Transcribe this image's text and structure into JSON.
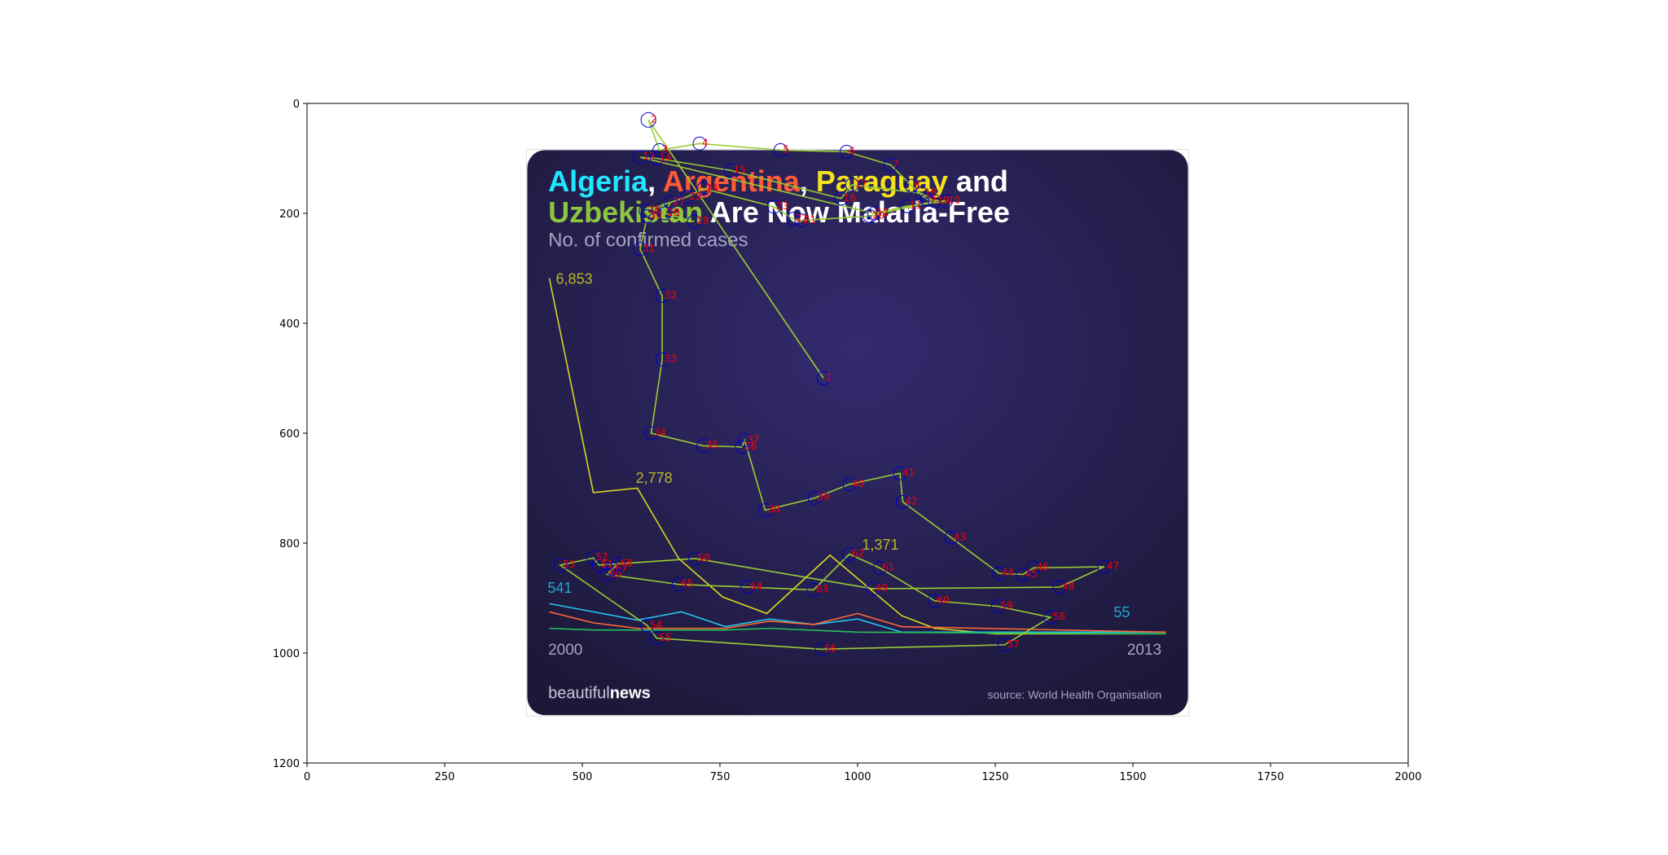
{
  "chart_data": {
    "type": "line",
    "xlim": [
      0,
      2000
    ],
    "ylim": [
      1200,
      0
    ],
    "x_ticks": [
      0,
      250,
      500,
      750,
      1000,
      1250,
      1500,
      1750,
      2000
    ],
    "y_ticks": [
      0,
      200,
      400,
      600,
      800,
      1000,
      1200
    ],
    "grid": false,
    "infographic": {
      "title_line1": [
        {
          "text": "Algeria",
          "color": "#22e5ff"
        },
        {
          "text": ", ",
          "color": "#ffffff"
        },
        {
          "text": "Argentina",
          "color": "#ff5a36"
        },
        {
          "text": ", ",
          "color": "#ffffff"
        },
        {
          "text": "Paraguay",
          "color": "#f2e21b"
        },
        {
          "text": " and",
          "color": "#ffffff"
        }
      ],
      "title_line2": [
        {
          "text": "Uzbekistan",
          "color": "#8cc63f"
        },
        {
          "text": " Are Now Malaria-Free",
          "color": "#ffffff"
        }
      ],
      "subtitle": "No. of confirmed cases",
      "value_labels": [
        {
          "text": "6,853",
          "color": "#b8b82a"
        },
        {
          "text": "2,778",
          "color": "#b8b82a"
        },
        {
          "text": "1,371",
          "color": "#b8b82a"
        },
        {
          "text": "541",
          "color": "#22a6d6"
        },
        {
          "text": "55",
          "color": "#22a6d6"
        }
      ],
      "year_start": "2000",
      "year_end": "2013",
      "brand_light": "beautiful",
      "brand_bold": "news",
      "source": "source: World Health Organisation",
      "series": [
        {
          "color": "#d7d61f",
          "points": [
            [
              440,
              318
            ],
            [
              520,
              708
            ],
            [
              600,
              700
            ],
            [
              675,
              828
            ],
            [
              755,
              898
            ],
            [
              835,
              928
            ],
            [
              950,
              822
            ],
            [
              1080,
              932
            ],
            [
              1140,
              955
            ],
            [
              1250,
              965
            ],
            [
              1560,
              965
            ]
          ]
        },
        {
          "color": "#24c6ee",
          "points": [
            [
              440,
              910
            ],
            [
              600,
              940
            ],
            [
              680,
              925
            ],
            [
              760,
              952
            ],
            [
              840,
              938
            ],
            [
              920,
              948
            ],
            [
              1000,
              938
            ],
            [
              1080,
              962
            ],
            [
              1560,
              962
            ]
          ]
        },
        {
          "color": "#ff6b35",
          "points": [
            [
              440,
              925
            ],
            [
              520,
              945
            ],
            [
              600,
              955
            ],
            [
              760,
              955
            ],
            [
              840,
              942
            ],
            [
              920,
              948
            ],
            [
              1000,
              928
            ],
            [
              1080,
              952
            ],
            [
              1560,
              962
            ]
          ]
        },
        {
          "color": "#25c25a",
          "points": [
            [
              440,
              955
            ],
            [
              520,
              958
            ],
            [
              600,
              958
            ],
            [
              760,
              958
            ],
            [
              840,
              955
            ],
            [
              1000,
              962
            ],
            [
              1560,
              965
            ]
          ]
        }
      ]
    },
    "annotation": {
      "line_color": "#9acd32",
      "marker_color": "#0000cc",
      "label_color": "#ff0000",
      "points": [
        {
          "label": "1",
          "x": 938,
          "y": 500
        },
        {
          "label": "2",
          "x": 620,
          "y": 30
        },
        {
          "label": "3",
          "x": 640,
          "y": 85
        },
        {
          "label": "4",
          "x": 713,
          "y": 73
        },
        {
          "label": "5",
          "x": 860,
          "y": 85
        },
        {
          "label": "6",
          "x": 980,
          "y": 88
        },
        {
          "label": "7",
          "x": 1060,
          "y": 112
        },
        {
          "label": "8",
          "x": 1098,
          "y": 150
        },
        {
          "label": "9",
          "x": 1126,
          "y": 175
        },
        {
          "label": "10",
          "x": 1160,
          "y": 178
        },
        {
          "label": "11",
          "x": 1090,
          "y": 187
        },
        {
          "label": "12",
          "x": 1030,
          "y": 200
        },
        {
          "label": "13",
          "x": 605,
          "y": 98
        },
        {
          "label": "14",
          "x": 635,
          "y": 100
        },
        {
          "label": "15",
          "x": 770,
          "y": 122
        },
        {
          "label": "16",
          "x": 970,
          "y": 173
        },
        {
          "label": "17",
          "x": 990,
          "y": 148
        },
        {
          "label": "18",
          "x": 1117,
          "y": 164
        },
        {
          "label": "19",
          "x": 1140,
          "y": 178
        },
        {
          "label": "20",
          "x": 1022,
          "y": 205
        },
        {
          "label": "21",
          "x": 898,
          "y": 213
        },
        {
          "label": "22",
          "x": 883,
          "y": 210
        },
        {
          "label": "23",
          "x": 848,
          "y": 188
        },
        {
          "label": "24",
          "x": 720,
          "y": 155
        },
        {
          "label": "25",
          "x": 690,
          "y": 170
        },
        {
          "label": "26",
          "x": 615,
          "y": 195
        },
        {
          "label": "27",
          "x": 660,
          "y": 180
        },
        {
          "label": "28",
          "x": 650,
          "y": 200
        },
        {
          "label": "29",
          "x": 703,
          "y": 215
        },
        {
          "label": "30",
          "x": 618,
          "y": 205
        },
        {
          "label": "31",
          "x": 605,
          "y": 265
        },
        {
          "label": "32",
          "x": 645,
          "y": 350
        },
        {
          "label": "33",
          "x": 645,
          "y": 466
        },
        {
          "label": "34",
          "x": 625,
          "y": 600
        },
        {
          "label": "35",
          "x": 720,
          "y": 623
        },
        {
          "label": "36",
          "x": 790,
          "y": 625
        },
        {
          "label": "37",
          "x": 795,
          "y": 613
        },
        {
          "label": "38",
          "x": 832,
          "y": 740
        },
        {
          "label": "39",
          "x": 922,
          "y": 718
        },
        {
          "label": "40",
          "x": 985,
          "y": 693
        },
        {
          "label": "41",
          "x": 1077,
          "y": 673
        },
        {
          "label": "42",
          "x": 1082,
          "y": 725
        },
        {
          "label": "43",
          "x": 1170,
          "y": 790
        },
        {
          "label": "44",
          "x": 1257,
          "y": 855
        },
        {
          "label": "45",
          "x": 1300,
          "y": 857
        },
        {
          "label": "46",
          "x": 1320,
          "y": 845
        },
        {
          "label": "47",
          "x": 1448,
          "y": 843
        },
        {
          "label": "48",
          "x": 1367,
          "y": 880
        },
        {
          "label": "49",
          "x": 1028,
          "y": 883
        },
        {
          "label": "50",
          "x": 705,
          "y": 828
        },
        {
          "label": "51",
          "x": 530,
          "y": 840
        },
        {
          "label": "52",
          "x": 520,
          "y": 827
        },
        {
          "label": "53",
          "x": 460,
          "y": 840
        },
        {
          "label": "54",
          "x": 618,
          "y": 950
        },
        {
          "label": "55",
          "x": 635,
          "y": 973
        },
        {
          "label": "56",
          "x": 935,
          "y": 993
        },
        {
          "label": "57",
          "x": 1267,
          "y": 985
        },
        {
          "label": "58",
          "x": 1350,
          "y": 935
        },
        {
          "label": "59",
          "x": 1255,
          "y": 915
        },
        {
          "label": "60",
          "x": 1140,
          "y": 905
        },
        {
          "label": "61",
          "x": 1040,
          "y": 845
        },
        {
          "label": "62",
          "x": 985,
          "y": 820
        },
        {
          "label": "63",
          "x": 920,
          "y": 885
        },
        {
          "label": "64",
          "x": 800,
          "y": 880
        },
        {
          "label": "65",
          "x": 675,
          "y": 875
        },
        {
          "label": "66",
          "x": 545,
          "y": 857
        },
        {
          "label": "67",
          "x": 555,
          "y": 847
        },
        {
          "label": "68",
          "x": 565,
          "y": 838
        }
      ]
    }
  }
}
